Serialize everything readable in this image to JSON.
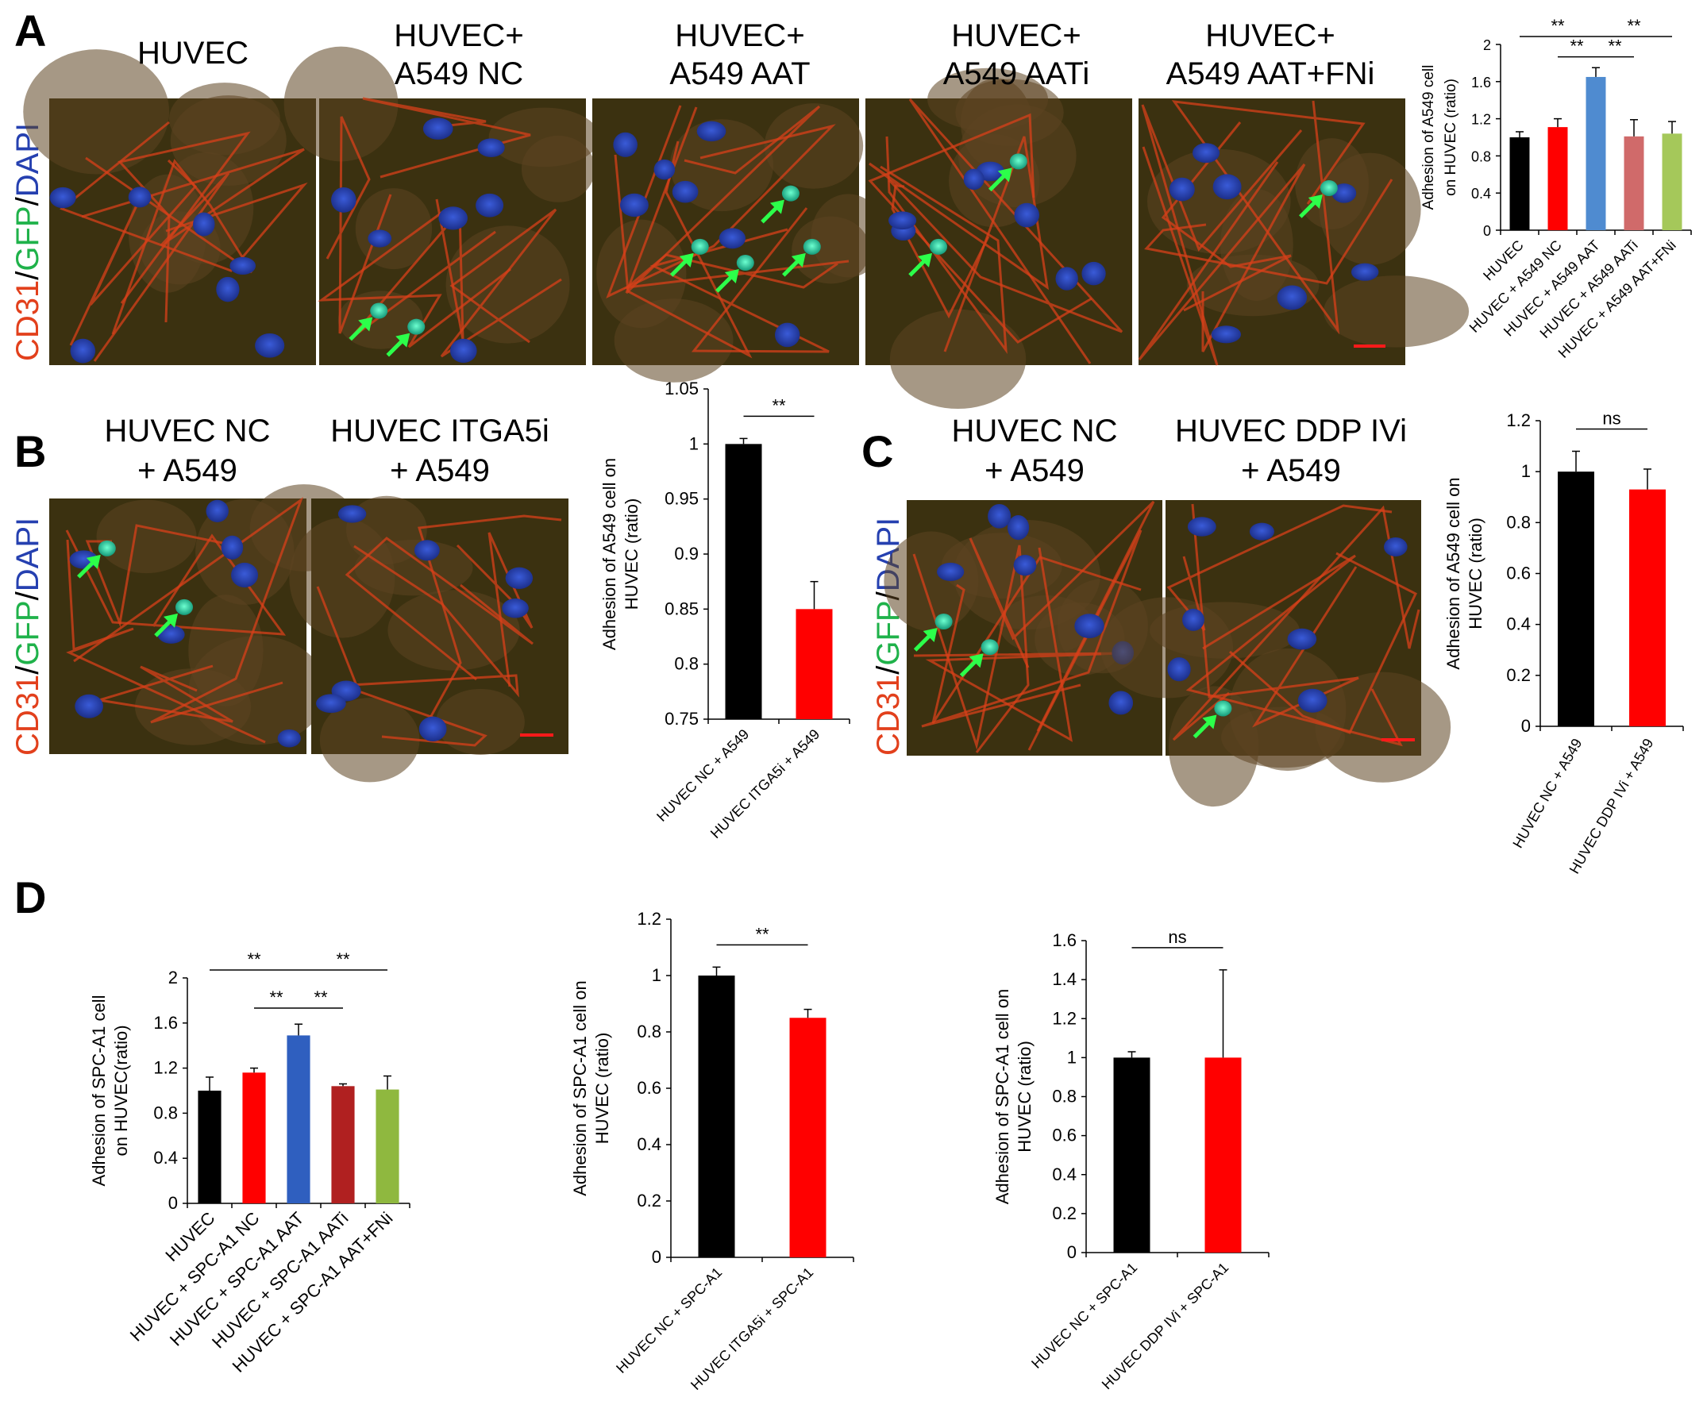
{
  "panels": {
    "A": "A",
    "B": "B",
    "C": "C",
    "D": "D"
  },
  "stain": {
    "cd31": "CD31",
    "gfp": "GFP",
    "dapi": "DAPI",
    "slash": "/"
  },
  "colors": {
    "cd31": "#e2401c",
    "gfp": "#1fb24a",
    "dapi": "#2540b0",
    "arrow": "#2cff4a",
    "scale_bar": "#ff1a1a"
  },
  "images": {
    "A": [
      {
        "lines": [
          "HUVEC"
        ]
      },
      {
        "lines": [
          "HUVEC+",
          "A549 NC"
        ]
      },
      {
        "lines": [
          "HUVEC+",
          "A549 AAT"
        ]
      },
      {
        "lines": [
          "HUVEC+",
          "A549 AATi"
        ]
      },
      {
        "lines": [
          "HUVEC+",
          "A549 AAT+FNi"
        ]
      }
    ],
    "B": [
      {
        "lines": [
          "HUVEC NC",
          "+ A549"
        ]
      },
      {
        "lines": [
          "HUVEC ITGA5i",
          "+ A549"
        ]
      }
    ],
    "C": [
      {
        "lines": [
          "HUVEC NC",
          "+ A549"
        ]
      },
      {
        "lines": [
          "HUVEC DDP IVi",
          "+ A549"
        ]
      }
    ]
  },
  "chart_data": [
    {
      "id": "A",
      "type": "bar",
      "ylabel": "Adhesion of A549 cell on HUVEC (ratio)",
      "ylabel_lines": [
        "Adhesion of A549 cell",
        "on HUVEC (ratio)"
      ],
      "ylim": [
        0,
        2
      ],
      "yticks": [
        "0",
        "0.4",
        "0.8",
        "1.2",
        "1.6",
        "2"
      ],
      "categories": [
        "HUVEC",
        "HUVEC + A549 NC",
        "HUVEC + A549 AAT",
        "HUVEC + A549 AATi",
        "HUVEC + A549 AAT+FNi"
      ],
      "values": [
        1.0,
        1.11,
        1.65,
        1.01,
        1.04
      ],
      "errors": [
        0.06,
        0.09,
        0.1,
        0.18,
        0.13
      ],
      "colors": [
        "#000000",
        "#ff0000",
        "#4f8bd0",
        "#d06a6a",
        "#a5c85a"
      ],
      "significance": [
        {
          "from": 0,
          "to": 2,
          "label": "**"
        },
        {
          "from": 2,
          "to": 4,
          "label": "**"
        },
        {
          "from": 1,
          "to": 2,
          "label": "**"
        },
        {
          "from": 2,
          "to": 3,
          "label": "**"
        }
      ]
    },
    {
      "id": "B",
      "type": "bar",
      "ylabel": "Adhesion of A549 cell on HUVEC (ratio)",
      "ylabel_lines": [
        "Adhesion of A549 cell on",
        "HUVEC (ratio)"
      ],
      "ylim": [
        0.75,
        1.05
      ],
      "yticks": [
        "0.75",
        "0.8",
        "0.85",
        "0.9",
        "0.95",
        "1",
        "1.05"
      ],
      "categories": [
        "HUVEC NC + A549",
        "HUVEC ITGA5i + A549"
      ],
      "values": [
        1.0,
        0.85
      ],
      "errors": [
        0.005,
        0.025
      ],
      "colors": [
        "#000000",
        "#ff0000"
      ],
      "significance": [
        {
          "from": 0,
          "to": 1,
          "label": "**"
        }
      ]
    },
    {
      "id": "C",
      "type": "bar",
      "ylabel": "Adhesion of A549 cell on HUVEC (ratio)",
      "ylabel_lines": [
        "Adhesion of A549 cell on",
        "HUVEC (ratio)"
      ],
      "ylim": [
        0,
        1.2
      ],
      "yticks": [
        "0",
        "0.2",
        "0.4",
        "0.6",
        "0.8",
        "1",
        "1.2"
      ],
      "categories": [
        "HUVEC NC + A549",
        "HUVEC DDP IVi + A549"
      ],
      "values": [
        1.0,
        0.93
      ],
      "errors": [
        0.08,
        0.08
      ],
      "colors": [
        "#000000",
        "#ff0000"
      ],
      "significance": [
        {
          "from": 0,
          "to": 1,
          "label": "ns"
        }
      ]
    },
    {
      "id": "D1",
      "type": "bar",
      "ylabel": "Adhesion of SPC-A1 cell on HUVEC(ratio)",
      "ylabel_lines": [
        "Adhesion of SPC-A1 cell",
        "on HUVEC(ratio)"
      ],
      "ylim": [
        0,
        2
      ],
      "yticks": [
        "0",
        "0.4",
        "0.8",
        "1.2",
        "1.6",
        "2"
      ],
      "categories": [
        "HUVEC",
        "HUVEC + SPC-A1 NC",
        "HUVEC + SPC-A1 AAT",
        "HUVEC + SPC-A1 AATi",
        "HUVEC + SPC-A1 AAT+FNi"
      ],
      "values": [
        1.0,
        1.16,
        1.49,
        1.04,
        1.01
      ],
      "errors": [
        0.12,
        0.04,
        0.1,
        0.02,
        0.12
      ],
      "colors": [
        "#000000",
        "#ff0000",
        "#2f5fbf",
        "#b02020",
        "#8fb83f"
      ],
      "significance": [
        {
          "from": 0,
          "to": 2,
          "label": "**"
        },
        {
          "from": 2,
          "to": 4,
          "label": "**"
        },
        {
          "from": 1,
          "to": 2,
          "label": "**"
        },
        {
          "from": 2,
          "to": 3,
          "label": "**"
        }
      ]
    },
    {
      "id": "D2",
      "type": "bar",
      "ylabel": "Adhesion of SPC-A1 cell on HUVEC (ratio)",
      "ylabel_lines": [
        "Adhesion of SPC-A1 cell on",
        "HUVEC (ratio)"
      ],
      "ylim": [
        0,
        1.2
      ],
      "yticks": [
        "0",
        "0.2",
        "0.4",
        "0.6",
        "0.8",
        "1",
        "1.2"
      ],
      "categories": [
        "HUVEC NC + SPC-A1",
        "HUVEC ITGA5i + SPC-A1"
      ],
      "values": [
        1.0,
        0.85
      ],
      "errors": [
        0.03,
        0.03
      ],
      "colors": [
        "#000000",
        "#ff0000"
      ],
      "significance": [
        {
          "from": 0,
          "to": 1,
          "label": "**"
        }
      ]
    },
    {
      "id": "D3",
      "type": "bar",
      "ylabel": "Adhesion of SPC-A1 cell on HUVEC (ratio)",
      "ylabel_lines": [
        "Adhesion of SPC-A1 cell on",
        "HUVEC (ratio)"
      ],
      "ylim": [
        0,
        1.6
      ],
      "yticks": [
        "0",
        "0.2",
        "0.4",
        "0.6",
        "0.8",
        "1",
        "1.2",
        "1.4",
        "1.6"
      ],
      "categories": [
        "HUVEC NC + SPC-A1",
        "HUVEC DDP IVi + SPC-A1"
      ],
      "values": [
        1.0,
        1.0
      ],
      "errors": [
        0.03,
        0.45
      ],
      "colors": [
        "#000000",
        "#ff0000"
      ],
      "significance": [
        {
          "from": 0,
          "to": 1,
          "label": "ns"
        }
      ]
    }
  ]
}
